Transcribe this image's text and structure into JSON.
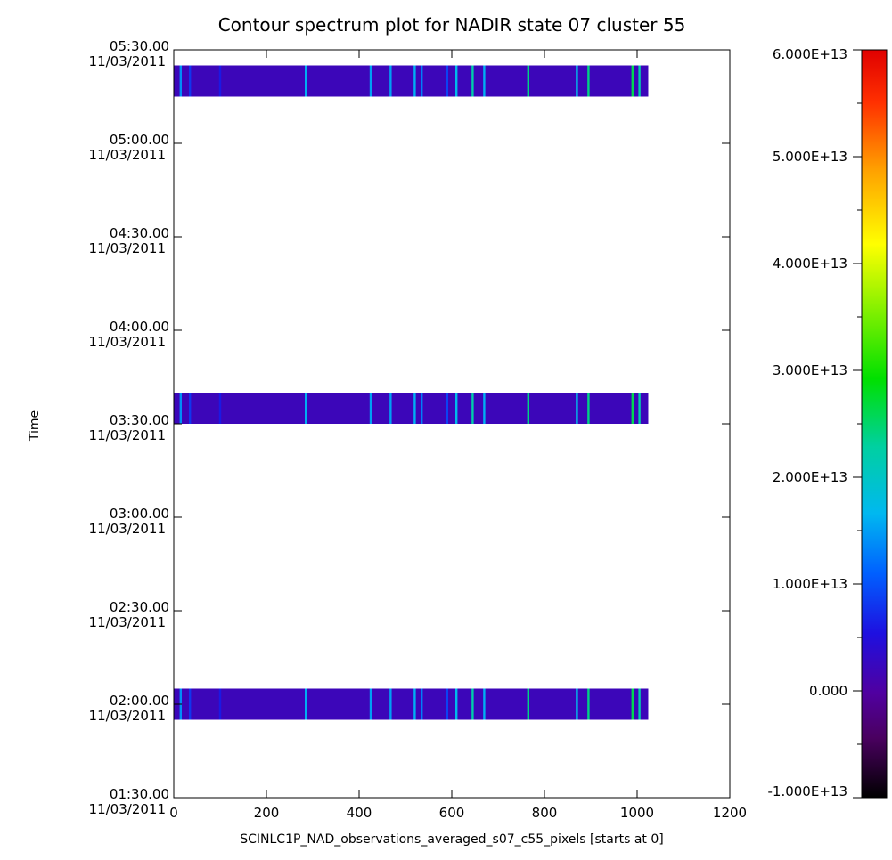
{
  "chart_data": {
    "type": "heatmap",
    "title": "Contour spectrum plot for NADIR state 07 cluster 55",
    "xlabel": "SCINLC1P_NAD_observations_averaged_s07_c55_pixels [starts at 0]",
    "ylabel": "Time",
    "xlim": [
      0,
      1200
    ],
    "x_ticks": [
      "0",
      "200",
      "400",
      "600",
      "800",
      "1000",
      "1200"
    ],
    "y_ticks": [
      {
        "time": "01:30.00",
        "date": "11/03/2011"
      },
      {
        "time": "02:00.00",
        "date": "11/03/2011"
      },
      {
        "time": "02:30.00",
        "date": "11/03/2011"
      },
      {
        "time": "03:00.00",
        "date": "11/03/2011"
      },
      {
        "time": "03:30.00",
        "date": "11/03/2011"
      },
      {
        "time": "04:00.00",
        "date": "11/03/2011"
      },
      {
        "time": "04:30.00",
        "date": "11/03/2011"
      },
      {
        "time": "05:00.00",
        "date": "11/03/2011"
      },
      {
        "time": "05:30.00",
        "date": "11/03/2011"
      }
    ],
    "colorbar": {
      "range": [
        -10000000000000.0,
        60000000000000.0
      ],
      "tick_labels": [
        "-1.000E+13",
        "0.000",
        "1.000E+13",
        "2.000E+13",
        "3.000E+13",
        "4.000E+13",
        "5.000E+13",
        "6.000E+13"
      ],
      "colormap": "rainbow (black-purple-blue-cyan-green-yellow-orange-red)"
    },
    "observations": [
      {
        "time_range": [
          "11/03/2011 01:55",
          "11/03/2011 02:05"
        ],
        "pixel_range": [
          0,
          1023
        ]
      },
      {
        "time_range": [
          "11/03/2011 03:30",
          "11/03/2011 03:40"
        ],
        "pixel_range": [
          0,
          1023
        ]
      },
      {
        "time_range": [
          "11/03/2011 05:15",
          "11/03/2011 05:25"
        ],
        "pixel_range": [
          0,
          1023
        ]
      }
    ],
    "base_value": 2000000000000.0,
    "highlight_pixels": [
      {
        "pixel": 15,
        "value": 14000000000000.0
      },
      {
        "pixel": 35,
        "value": 8000000000000.0
      },
      {
        "pixel": 100,
        "value": 6000000000000.0
      },
      {
        "pixel": 285,
        "value": 16000000000000.0
      },
      {
        "pixel": 425,
        "value": 15000000000000.0
      },
      {
        "pixel": 468,
        "value": 15000000000000.0
      },
      {
        "pixel": 520,
        "value": 16000000000000.0
      },
      {
        "pixel": 535,
        "value": 13000000000000.0
      },
      {
        "pixel": 590,
        "value": 9000000000000.0
      },
      {
        "pixel": 610,
        "value": 17000000000000.0
      },
      {
        "pixel": 645,
        "value": 22000000000000.0
      },
      {
        "pixel": 670,
        "value": 16000000000000.0
      },
      {
        "pixel": 765,
        "value": 24000000000000.0
      },
      {
        "pixel": 870,
        "value": 17000000000000.0
      },
      {
        "pixel": 895,
        "value": 24000000000000.0
      },
      {
        "pixel": 990,
        "value": 26000000000000.0
      },
      {
        "pixel": 1005,
        "value": 22000000000000.0
      }
    ]
  }
}
